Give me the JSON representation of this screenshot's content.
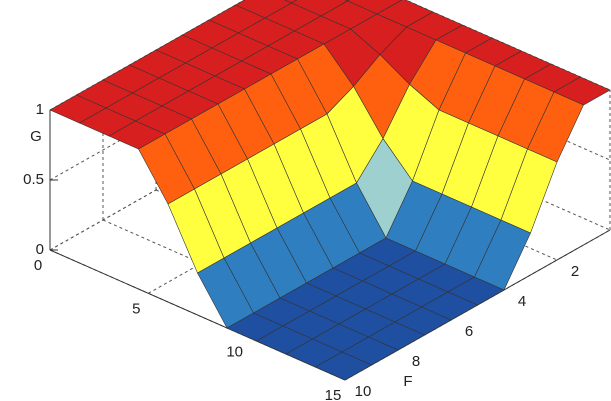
{
  "chart_data": {
    "type": "surface",
    "xlabel": null,
    "ylabel": "F",
    "zlabel": "G",
    "x": [
      0,
      1.5,
      3,
      4.5,
      6,
      7.5,
      9,
      10.5,
      12,
      13.5,
      15
    ],
    "y": [
      0,
      1,
      2,
      3,
      4,
      5,
      6,
      7,
      8,
      9,
      10
    ],
    "z": [
      [
        1,
        1,
        1,
        1,
        1,
        1,
        1,
        1,
        1,
        1,
        1
      ],
      [
        1,
        1,
        1,
        1,
        1,
        1,
        1,
        1,
        1,
        1,
        1
      ],
      [
        1,
        1,
        1,
        1,
        0.91,
        0.79,
        0.7,
        0.7,
        0.7,
        0.7,
        0.7
      ],
      [
        1,
        1,
        1,
        1,
        0.79,
        0.51,
        0.3,
        0.3,
        0.3,
        0.3,
        0.3
      ],
      [
        1,
        1,
        1,
        1,
        0.7,
        0.3,
        0,
        0,
        0,
        0,
        0
      ],
      [
        1,
        1,
        1,
        1,
        0.7,
        0.3,
        0,
        0,
        0,
        0,
        0
      ],
      [
        1,
        1,
        1,
        1,
        0.7,
        0.3,
        0,
        0,
        0,
        0,
        0
      ],
      [
        1,
        1,
        1,
        1,
        0.7,
        0.3,
        0,
        0,
        0,
        0,
        0
      ],
      [
        1,
        1,
        1,
        1,
        0.7,
        0.3,
        0,
        0,
        0,
        0,
        0
      ],
      [
        1,
        1,
        1,
        1,
        0.7,
        0.3,
        0,
        0,
        0,
        0,
        0
      ],
      [
        1,
        1,
        1,
        1,
        0.7,
        0.3,
        0,
        0,
        0,
        0,
        0
      ]
    ],
    "xlim": [
      0,
      15
    ],
    "xticks": [
      0,
      5,
      10,
      15
    ],
    "ylim": [
      0,
      10
    ],
    "yticks": [
      2,
      4,
      6,
      8,
      10
    ],
    "zlim": [
      0,
      1
    ],
    "zticks": [
      0,
      0.5,
      1
    ],
    "grid": true,
    "colormap": [
      "#1f4fa0",
      "#2f7fc0",
      "#9fd0d0",
      "#ffff40",
      "#ffb020",
      "#ff6010",
      "#d81f1f"
    ]
  }
}
